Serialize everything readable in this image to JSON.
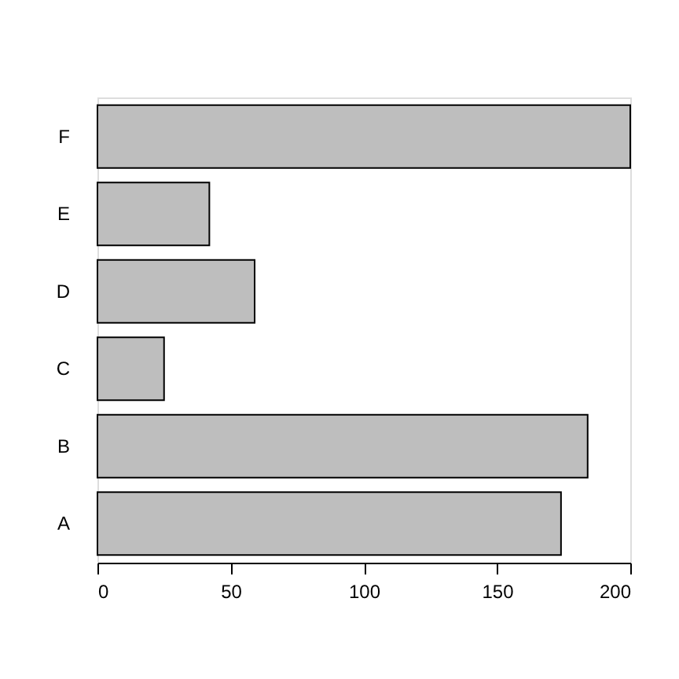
{
  "chart_data": {
    "type": "bar",
    "orientation": "horizontal",
    "categories": [
      "F",
      "E",
      "D",
      "C",
      "B",
      "A"
    ],
    "values": [
      200,
      42,
      59,
      25,
      184,
      174
    ],
    "color": "#bebebe",
    "xlim": [
      0,
      200
    ],
    "xticks": [
      0,
      50,
      100,
      150,
      200
    ],
    "grid": false
  }
}
